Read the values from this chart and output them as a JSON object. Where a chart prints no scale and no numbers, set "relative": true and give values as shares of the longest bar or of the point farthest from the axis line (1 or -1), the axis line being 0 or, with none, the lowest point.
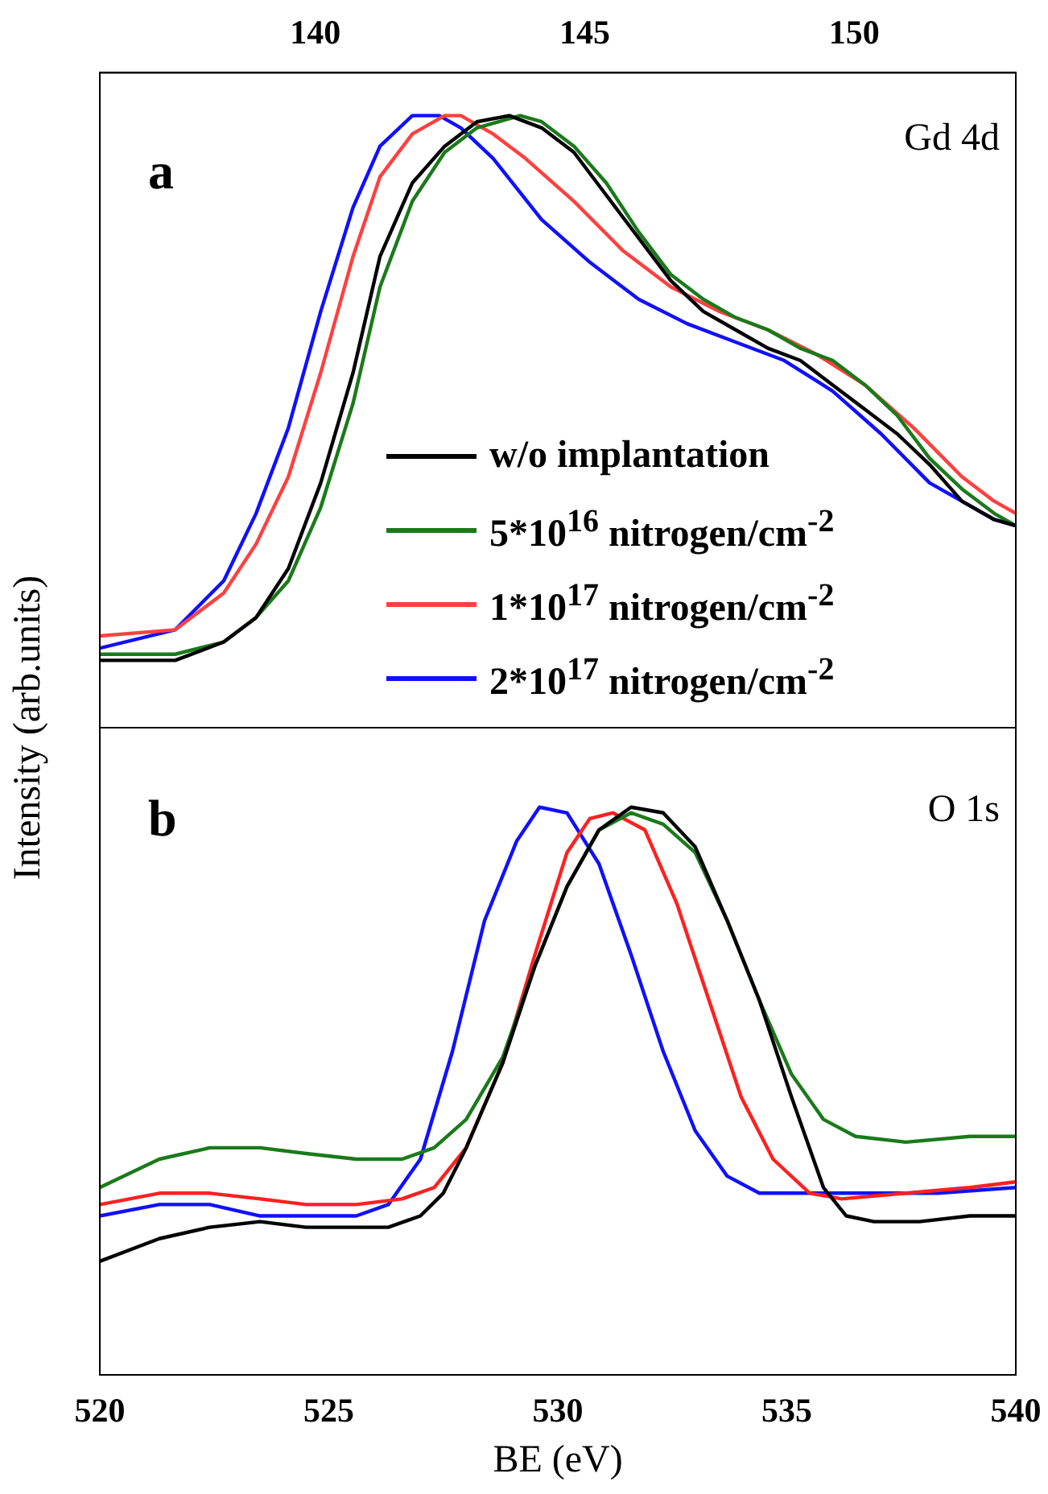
{
  "chart_data": [
    {
      "type": "line",
      "relative": true,
      "xlim": [
        136,
        153
      ],
      "xticks": [
        140,
        145,
        150
      ],
      "tick_labels": "x",
      "ylabel": "Intensity (arb.units)",
      "legend": "bottom right",
      "annotations": [
        "a",
        "Gd 4d"
      ],
      "series": [
        {
          "name": "w/o implantation",
          "color": "#000000",
          "x": [
            136,
            137.4,
            138.3,
            138.9,
            139.5,
            140.1,
            140.7,
            141.2,
            141.8,
            142.4,
            143,
            143.6,
            144.2,
            144.8,
            145.4,
            146,
            146.6,
            147.2,
            147.8,
            148.4,
            149,
            149.6,
            150.2,
            150.8,
            151.4,
            152,
            152.6,
            153
          ],
          "values": [
            0.11,
            0.11,
            0.14,
            0.18,
            0.26,
            0.4,
            0.58,
            0.77,
            0.89,
            0.95,
            0.99,
            1,
            0.98,
            0.94,
            0.87,
            0.8,
            0.73,
            0.68,
            0.65,
            0.62,
            0.6,
            0.56,
            0.52,
            0.48,
            0.43,
            0.37,
            0.34,
            0.33
          ]
        },
        {
          "name": "5*10$^{16}$ nitrogen/cm$^{-2}$",
          "color": "#1a7a1a",
          "x": [
            136,
            137.4,
            138.3,
            138.9,
            139.5,
            140.1,
            140.7,
            141.2,
            141.8,
            142.4,
            143,
            143.8,
            144.2,
            144.8,
            145.4,
            146,
            146.6,
            147.2,
            147.8,
            148.4,
            149,
            149.6,
            150.2,
            150.8,
            151.4,
            152,
            152.6,
            153
          ],
          "values": [
            0.12,
            0.12,
            0.14,
            0.18,
            0.24,
            0.36,
            0.53,
            0.72,
            0.86,
            0.94,
            0.98,
            1,
            0.99,
            0.95,
            0.89,
            0.81,
            0.74,
            0.7,
            0.67,
            0.65,
            0.62,
            0.6,
            0.56,
            0.51,
            0.44,
            0.39,
            0.35,
            0.33
          ]
        },
        {
          "name": "1*10$^{17}$ nitrogen/cm$^{-2}$",
          "color": "#ff4040",
          "x": [
            136,
            137.4,
            138.3,
            138.9,
            139.5,
            140.1,
            140.7,
            141.2,
            141.8,
            142.4,
            142.7,
            143.3,
            143.9,
            144.8,
            145.7,
            146.6,
            147.5,
            148.4,
            149.3,
            150.2,
            151.1,
            152,
            152.6,
            153
          ],
          "values": [
            0.15,
            0.16,
            0.22,
            0.3,
            0.41,
            0.58,
            0.77,
            0.9,
            0.97,
            1,
            1,
            0.97,
            0.93,
            0.86,
            0.78,
            0.72,
            0.68,
            0.65,
            0.61,
            0.56,
            0.49,
            0.41,
            0.37,
            0.35
          ]
        },
        {
          "name": "2*10$^{17}$ nitrogen/cm$^{-2}$",
          "color": "#1010ff",
          "x": [
            136,
            137.4,
            138.3,
            138.9,
            139.5,
            140.1,
            140.7,
            141.2,
            141.8,
            142.3,
            142.7,
            143.3,
            144.2,
            145.1,
            146,
            146.9,
            147.8,
            148.7,
            149.6,
            150.5,
            151.4,
            152,
            152.6,
            153
          ],
          "values": [
            0.13,
            0.16,
            0.24,
            0.35,
            0.49,
            0.68,
            0.85,
            0.95,
            1,
            1,
            0.98,
            0.93,
            0.83,
            0.76,
            0.7,
            0.66,
            0.63,
            0.6,
            0.55,
            0.48,
            0.4,
            0.37,
            0.34,
            0.33
          ]
        }
      ]
    },
    {
      "type": "line",
      "relative": true,
      "xlim": [
        520,
        540
      ],
      "xticks": [
        520,
        525,
        530,
        535,
        540
      ],
      "tick_labels": "x",
      "xlabel": "BE (eV)",
      "annotations": [
        "b",
        "O 1s"
      ],
      "series": [
        {
          "color": "#000000",
          "x": [
            520,
            521.3,
            522.4,
            523.5,
            524.5,
            525.6,
            526.3,
            527,
            527.5,
            528,
            528.8,
            529.5,
            530.2,
            530.9,
            531.6,
            532.3,
            533,
            533.7,
            534.4,
            535.1,
            535.8,
            536.3,
            536.9,
            537.9,
            539,
            540
          ],
          "values": [
            0.2,
            0.24,
            0.26,
            0.27,
            0.26,
            0.26,
            0.26,
            0.28,
            0.32,
            0.4,
            0.55,
            0.72,
            0.86,
            0.96,
            1,
            0.99,
            0.93,
            0.8,
            0.66,
            0.49,
            0.33,
            0.28,
            0.27,
            0.27,
            0.28,
            0.28
          ]
        },
        {
          "color": "#1a7a1a",
          "x": [
            520,
            521.3,
            522.4,
            523.5,
            524.5,
            525.6,
            526.6,
            527.3,
            528,
            528.8,
            529.5,
            530.2,
            530.9,
            531.6,
            532.3,
            533,
            533.7,
            534.4,
            535.1,
            535.8,
            536.5,
            537.6,
            539,
            540
          ],
          "values": [
            0.33,
            0.38,
            0.4,
            0.4,
            0.39,
            0.38,
            0.38,
            0.4,
            0.45,
            0.56,
            0.72,
            0.86,
            0.96,
            0.99,
            0.97,
            0.92,
            0.8,
            0.66,
            0.53,
            0.45,
            0.42,
            0.41,
            0.42,
            0.42
          ]
        },
        {
          "color": "#ff2020",
          "x": [
            520,
            521.3,
            522.4,
            523.5,
            524.5,
            525.6,
            526.6,
            527.3,
            528,
            528.8,
            529.5,
            530.2,
            530.7,
            531.2,
            531.9,
            532.6,
            533.3,
            534,
            534.7,
            535.5,
            536.2,
            537.6,
            539,
            540
          ],
          "values": [
            0.3,
            0.32,
            0.32,
            0.31,
            0.3,
            0.3,
            0.31,
            0.33,
            0.4,
            0.55,
            0.74,
            0.92,
            0.98,
            0.99,
            0.96,
            0.83,
            0.66,
            0.49,
            0.38,
            0.32,
            0.31,
            0.32,
            0.33,
            0.34
          ]
        },
        {
          "color": "#1010ff",
          "x": [
            520,
            521.3,
            522.4,
            523.5,
            524.5,
            525.6,
            526.3,
            527,
            527.7,
            528.4,
            529.1,
            529.6,
            530.2,
            530.9,
            531.6,
            532.3,
            533,
            533.7,
            534.4,
            535.5,
            536.9,
            538.3,
            540
          ],
          "values": [
            0.28,
            0.3,
            0.3,
            0.28,
            0.28,
            0.28,
            0.3,
            0.38,
            0.57,
            0.8,
            0.94,
            1,
            0.99,
            0.9,
            0.74,
            0.57,
            0.43,
            0.35,
            0.32,
            0.32,
            0.32,
            0.32,
            0.33
          ]
        }
      ]
    }
  ]
}
